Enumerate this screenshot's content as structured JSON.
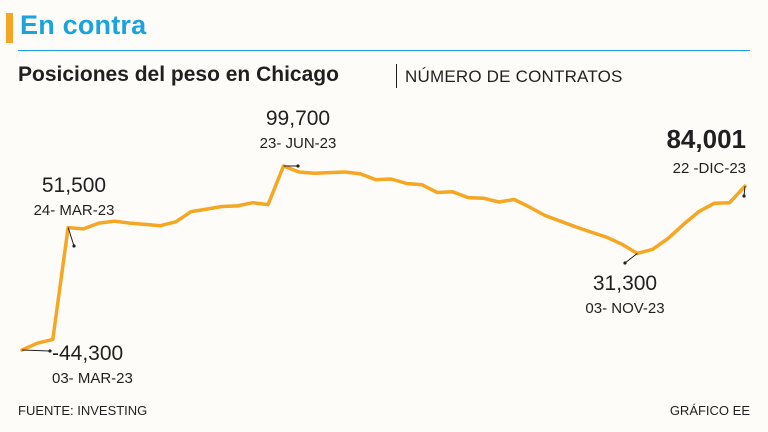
{
  "header": {
    "section_title": "En contra",
    "accent_color": "#f5a623",
    "title_color": "#1aa3dd"
  },
  "chart_data": {
    "type": "line",
    "title": "Posiciones del peso en Chicago",
    "subtitle": "NÚMERO DE CONTRATOS",
    "line_color": "#f5a623",
    "values": [
      -44300,
      -39000,
      -36000,
      51500,
      50500,
      55000,
      56500,
      55000,
      54000,
      53000,
      56000,
      64000,
      66000,
      68000,
      68500,
      71000,
      69500,
      99700,
      95000,
      94000,
      94500,
      95000,
      93500,
      89000,
      89500,
      86000,
      85000,
      79000,
      79500,
      75000,
      74500,
      71500,
      73500,
      67500,
      61000,
      56500,
      52000,
      48000,
      44000,
      38500,
      31300,
      34500,
      43000,
      54000,
      64000,
      70500,
      71000,
      84001
    ],
    "ylim": [
      -50000,
      110000
    ],
    "annotations": [
      {
        "index": 0,
        "value": "-44,300",
        "date": "03- MAR-23",
        "emphasis": false
      },
      {
        "index": 3,
        "value": "51,500",
        "date": "24- MAR-23",
        "emphasis": false
      },
      {
        "index": 17,
        "value": "99,700",
        "date": "23- JUN-23",
        "emphasis": false
      },
      {
        "index": 40,
        "value": "31,300",
        "date": "03- NOV-23",
        "emphasis": false
      },
      {
        "index": 47,
        "value": "84,001",
        "date": "22 -DIC-23",
        "emphasis": true
      }
    ]
  },
  "footer": {
    "source": "FUENTE: INVESTING",
    "credit": "GRÁFICO EE"
  }
}
